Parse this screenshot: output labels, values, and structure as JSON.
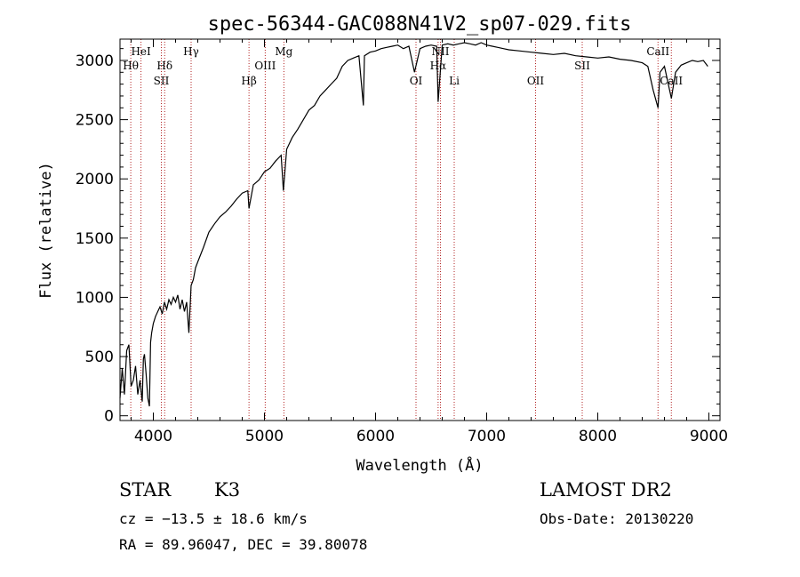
{
  "chart_data": {
    "type": "line",
    "title": "spec-56344-GAC088N41V2_sp07-029.fits",
    "xlabel": "Wavelength (Å)",
    "ylabel": "Flux (relative)",
    "xlim": [
      3700,
      9100
    ],
    "ylim": [
      -40,
      3180
    ],
    "x_ticks": [
      4000,
      5000,
      6000,
      7000,
      8000,
      9000
    ],
    "y_ticks": [
      0,
      500,
      1000,
      1500,
      2000,
      2500,
      3000
    ],
    "x_tick_labels": [
      "4000",
      "5000",
      "6000",
      "7000",
      "8000",
      "9000"
    ],
    "y_tick_labels": [
      "0",
      "500",
      "1000",
      "1500",
      "2000",
      "2500",
      "3000"
    ],
    "grid": false,
    "line_color": "#000000",
    "marker_color": "#b22222",
    "series": [
      {
        "x": [
          3700,
          3720,
          3740,
          3760,
          3780,
          3800,
          3820,
          3840,
          3860,
          3880,
          3900,
          3910,
          3920,
          3935,
          3950,
          3965,
          3975,
          3985,
          4000,
          4020,
          4040,
          4060,
          4080,
          4100,
          4120,
          4140,
          4160,
          4180,
          4200,
          4220,
          4240,
          4260,
          4280,
          4300,
          4320,
          4340,
          4360,
          4380,
          4400,
          4450,
          4500,
          4550,
          4600,
          4650,
          4700,
          4750,
          4800,
          4850,
          4861,
          4900,
          4950,
          5000,
          5050,
          5100,
          5150,
          5170,
          5183,
          5200,
          5250,
          5300,
          5350,
          5400,
          5450,
          5500,
          5550,
          5600,
          5650,
          5700,
          5750,
          5800,
          5850,
          5890,
          5900,
          5950,
          6000,
          6050,
          6100,
          6150,
          6200,
          6250,
          6300,
          6350,
          6400,
          6450,
          6500,
          6550,
          6563,
          6600,
          6650,
          6700,
          6750,
          6800,
          6850,
          6900,
          6950,
          7000,
          7050,
          7100,
          7150,
          7200,
          7300,
          7400,
          7500,
          7600,
          7700,
          7800,
          7900,
          8000,
          8100,
          8200,
          8300,
          8400,
          8450,
          8498,
          8542,
          8560,
          8600,
          8662,
          8700,
          8750,
          8800,
          8850,
          8900,
          8950,
          8990
        ],
        "y": [
          150,
          400,
          180,
          550,
          600,
          250,
          300,
          420,
          180,
          300,
          120,
          480,
          520,
          350,
          150,
          80,
          620,
          700,
          780,
          840,
          880,
          920,
          860,
          960,
          900,
          980,
          940,
          1000,
          960,
          1020,
          900,
          980,
          880,
          960,
          700,
          1100,
          1150,
          1250,
          1300,
          1420,
          1550,
          1620,
          1680,
          1720,
          1770,
          1830,
          1880,
          1900,
          1750,
          1950,
          1990,
          2060,
          2090,
          2150,
          2200,
          1900,
          2050,
          2250,
          2350,
          2420,
          2500,
          2580,
          2620,
          2700,
          2750,
          2800,
          2850,
          2950,
          3000,
          3020,
          3040,
          2620,
          3040,
          3070,
          3080,
          3100,
          3110,
          3120,
          3130,
          3100,
          3120,
          2900,
          3100,
          3120,
          3130,
          3120,
          2650,
          3130,
          3140,
          3130,
          3140,
          3150,
          3140,
          3130,
          3150,
          3130,
          3120,
          3110,
          3100,
          3090,
          3080,
          3070,
          3060,
          3050,
          3060,
          3040,
          3030,
          3020,
          3030,
          3010,
          3000,
          2980,
          2950,
          2750,
          2600,
          2900,
          2950,
          2680,
          2900,
          2960,
          2980,
          3000,
          2990,
          3000,
          2950
        ]
      }
    ],
    "line_markers": [
      {
        "label": "Hθ",
        "wavelength": 3797,
        "label_row": "upper2"
      },
      {
        "label": "HeI",
        "wavelength": 3889,
        "label_row": "upper1"
      },
      {
        "label": "SII",
        "wavelength": 4072,
        "label_row": "lower"
      },
      {
        "label": "Hδ",
        "wavelength": 4102,
        "label_row": "upper2"
      },
      {
        "label": "Hγ",
        "wavelength": 4340,
        "label_row": "upper1"
      },
      {
        "label": "Hβ",
        "wavelength": 4861,
        "label_row": "lower"
      },
      {
        "label": "OIII",
        "wavelength": 5007,
        "label_row": "upper2"
      },
      {
        "label": "Mg",
        "wavelength": 5175,
        "label_row": "upper1"
      },
      {
        "label": "OI",
        "wavelength": 6364,
        "label_row": "lower"
      },
      {
        "label": "NII",
        "wavelength": 6584,
        "label_row": "upper1"
      },
      {
        "label": "Hα",
        "wavelength": 6563,
        "label_row": "upper2"
      },
      {
        "label": "Li",
        "wavelength": 6708,
        "label_row": "lower"
      },
      {
        "label": "OII",
        "wavelength": 7440,
        "label_row": "lower"
      },
      {
        "label": "SII",
        "wavelength": 7860,
        "label_row": "upper2"
      },
      {
        "label": "CaII",
        "wavelength": 8542,
        "label_row": "upper1"
      },
      {
        "label": "CaII",
        "wavelength": 8662,
        "label_row": "lower"
      }
    ]
  },
  "info": {
    "object_class": "STAR",
    "subclass": "K3",
    "survey": "LAMOST DR2",
    "cz": "cz = −13.5 ± 18.6 km/s",
    "obs_date": "Obs-Date: 20130220",
    "coords": "RA =  89.96047, DEC =  39.80078"
  }
}
